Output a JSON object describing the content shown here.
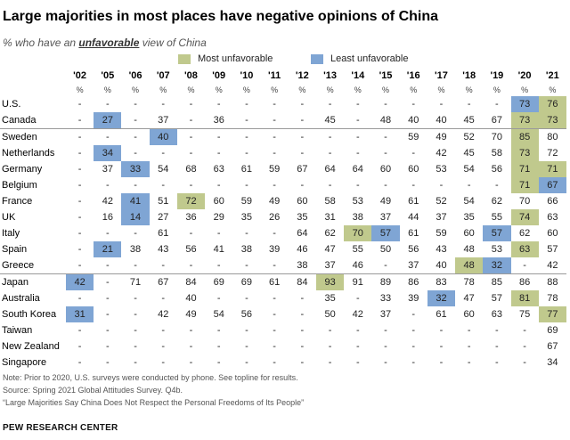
{
  "title": "Large majorities in most places have negative opinions of China",
  "subtitle": {
    "before": "% who have an ",
    "emphasis": "unfavorable",
    "after": " view of China"
  },
  "legend": {
    "most": {
      "label": "Most unfavorable",
      "color": "#c0c98d"
    },
    "least": {
      "label": "Least unfavorable",
      "color": "#7fa5d4"
    }
  },
  "chart_data": {
    "type": "table",
    "years": [
      "'02",
      "'05",
      "'06",
      "'07",
      "'08",
      "'09",
      "'10",
      "'11",
      "'12",
      "'13",
      "'14",
      "'15",
      "'16",
      "'17",
      "'18",
      "'19",
      "'20",
      "'21"
    ],
    "unit_label": "%",
    "rows": [
      {
        "country": "U.S.",
        "values": [
          "-",
          "-",
          "-",
          "-",
          "-",
          "-",
          "-",
          "-",
          "-",
          "-",
          "-",
          "-",
          "-",
          "-",
          "-",
          "-",
          "73",
          "76"
        ],
        "most": [
          "'21"
        ],
        "least": [
          "'20"
        ]
      },
      {
        "country": "Canada",
        "values": [
          "-",
          "27",
          "-",
          "37",
          "-",
          "36",
          "-",
          "-",
          "-",
          "45",
          "-",
          "48",
          "40",
          "40",
          "45",
          "67",
          "73",
          "73"
        ],
        "most": [
          "'20",
          "'21"
        ],
        "least": [
          "'05"
        ]
      },
      {
        "country": "Sweden",
        "values": [
          "-",
          "-",
          "-",
          "40",
          "-",
          "-",
          "-",
          "-",
          "-",
          "-",
          "-",
          "-",
          "59",
          "49",
          "52",
          "70",
          "85",
          "80"
        ],
        "most": [
          "'20"
        ],
        "least": [
          "'07"
        ]
      },
      {
        "country": "Netherlands",
        "values": [
          "-",
          "34",
          "-",
          "-",
          "-",
          "-",
          "-",
          "-",
          "-",
          "-",
          "-",
          "-",
          "-",
          "42",
          "45",
          "58",
          "73",
          "72"
        ],
        "most": [
          "'20"
        ],
        "least": [
          "'05"
        ]
      },
      {
        "country": "Germany",
        "values": [
          "-",
          "37",
          "33",
          "54",
          "68",
          "63",
          "61",
          "59",
          "67",
          "64",
          "64",
          "60",
          "60",
          "53",
          "54",
          "56",
          "71",
          "71"
        ],
        "most": [
          "'20",
          "'21"
        ],
        "least": [
          "'06"
        ]
      },
      {
        "country": "Belgium",
        "values": [
          "-",
          "-",
          "-",
          "-",
          "-",
          "-",
          "-",
          "-",
          "-",
          "-",
          "-",
          "-",
          "-",
          "-",
          "-",
          "-",
          "71",
          "67"
        ],
        "most": [
          "'20"
        ],
        "least": [
          "'21"
        ]
      },
      {
        "country": "France",
        "values": [
          "-",
          "42",
          "41",
          "51",
          "72",
          "60",
          "59",
          "49",
          "60",
          "58",
          "53",
          "49",
          "61",
          "52",
          "54",
          "62",
          "70",
          "66"
        ],
        "most": [
          "'08"
        ],
        "least": [
          "'06"
        ]
      },
      {
        "country": "UK",
        "values": [
          "-",
          "16",
          "14",
          "27",
          "36",
          "29",
          "35",
          "26",
          "35",
          "31",
          "38",
          "37",
          "44",
          "37",
          "35",
          "55",
          "74",
          "63"
        ],
        "most": [
          "'20"
        ],
        "least": [
          "'06"
        ]
      },
      {
        "country": "Italy",
        "values": [
          "-",
          "-",
          "-",
          "61",
          "-",
          "-",
          "-",
          "-",
          "64",
          "62",
          "70",
          "57",
          "61",
          "59",
          "60",
          "57",
          "62",
          "60"
        ],
        "most": [
          "'14"
        ],
        "least": [
          "'15",
          "'19"
        ]
      },
      {
        "country": "Spain",
        "values": [
          "-",
          "21",
          "38",
          "43",
          "56",
          "41",
          "38",
          "39",
          "46",
          "47",
          "55",
          "50",
          "56",
          "43",
          "48",
          "53",
          "63",
          "57"
        ],
        "most": [
          "'20"
        ],
        "least": [
          "'05"
        ]
      },
      {
        "country": "Greece",
        "values": [
          "-",
          "-",
          "-",
          "-",
          "-",
          "-",
          "-",
          "-",
          "38",
          "37",
          "46",
          "-",
          "37",
          "40",
          "48",
          "32",
          "-",
          "42"
        ],
        "most": [
          "'18"
        ],
        "least": [
          "'19"
        ]
      },
      {
        "country": "Japan",
        "values": [
          "42",
          "-",
          "71",
          "67",
          "84",
          "69",
          "69",
          "61",
          "84",
          "93",
          "91",
          "89",
          "86",
          "83",
          "78",
          "85",
          "86",
          "88"
        ],
        "most": [
          "'13"
        ],
        "least": [
          "'02"
        ]
      },
      {
        "country": "Australia",
        "values": [
          "-",
          "-",
          "-",
          "-",
          "40",
          "-",
          "-",
          "-",
          "-",
          "35",
          "-",
          "33",
          "39",
          "32",
          "47",
          "57",
          "81",
          "78"
        ],
        "most": [
          "'20"
        ],
        "least": [
          "'17"
        ]
      },
      {
        "country": "South Korea",
        "values": [
          "31",
          "-",
          "-",
          "42",
          "49",
          "54",
          "56",
          "-",
          "-",
          "50",
          "42",
          "37",
          "-",
          "61",
          "60",
          "63",
          "75",
          "77"
        ],
        "most": [
          "'21"
        ],
        "least": [
          "'02"
        ]
      },
      {
        "country": "Taiwan",
        "values": [
          "-",
          "-",
          "-",
          "-",
          "-",
          "-",
          "-",
          "-",
          "-",
          "-",
          "-",
          "-",
          "-",
          "-",
          "-",
          "-",
          "-",
          "69"
        ],
        "most": [],
        "least": []
      },
      {
        "country": "New Zealand",
        "values": [
          "-",
          "-",
          "-",
          "-",
          "-",
          "-",
          "-",
          "-",
          "-",
          "-",
          "-",
          "-",
          "-",
          "-",
          "-",
          "-",
          "-",
          "67"
        ],
        "most": [],
        "least": []
      },
      {
        "country": "Singapore",
        "values": [
          "-",
          "-",
          "-",
          "-",
          "-",
          "-",
          "-",
          "-",
          "-",
          "-",
          "-",
          "-",
          "-",
          "-",
          "-",
          "-",
          "-",
          "34"
        ],
        "most": [],
        "least": []
      }
    ],
    "separators_before": [
      "Sweden",
      "Japan"
    ]
  },
  "notes": [
    "Note: Prior to 2020, U.S. surveys were conducted by phone. See topline for results.",
    "Source: Spring 2021 Global Attitudes Survey. Q4b.",
    "“Large Majorities Say China Does Not Respect the Personal Freedoms of Its People”"
  ],
  "brand": "PEW RESEARCH CENTER"
}
